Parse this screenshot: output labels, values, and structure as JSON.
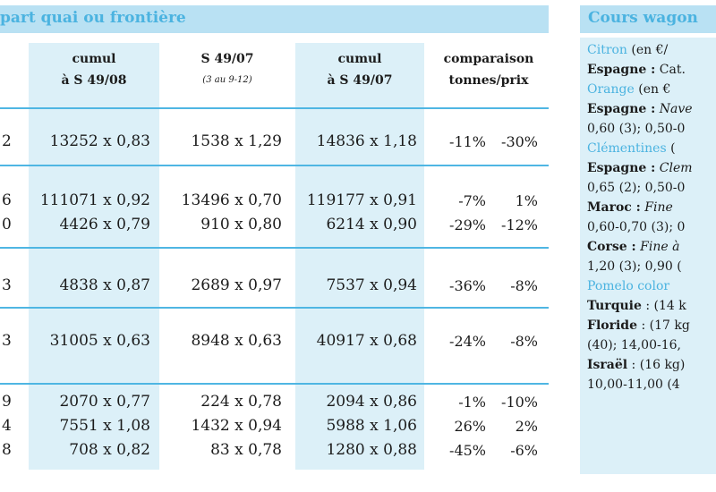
{
  "left_header": "part quai ou frontière",
  "right_header": "Cours wagon",
  "colors": {
    "accent": "#4bb3e0",
    "band": "#dcf0f8",
    "header_bg": "#b9e1f3",
    "rule": "#4fb6e3"
  },
  "columns": [
    {
      "line1": "cumul",
      "line2": "à S 49/08",
      "sub": ""
    },
    {
      "line1": "S 49/07",
      "line2": "",
      "sub": "(3 au 9-12)"
    },
    {
      "line1": "cumul",
      "line2": "à S 49/07",
      "sub": ""
    },
    {
      "line1": "comparaison",
      "line2": "tonnes/prix",
      "sub": ""
    }
  ],
  "rows": [
    {
      "edge": "2",
      "c1": "13252 x 0,83",
      "c2": "1538 x 1,29",
      "c3": "14836 x 1,18",
      "t": "-11%",
      "p": "-30%"
    },
    {
      "edge": "6",
      "c1": "111071 x 0,92",
      "c2": "13496 x 0,70",
      "c3": "119177 x 0,91",
      "t": "-7%",
      "p": "1%"
    },
    {
      "edge": "0",
      "c1": "4426 x 0,79",
      "c2": "910 x 0,80",
      "c3": "6214 x 0,90",
      "t": "-29%",
      "p": "-12%"
    },
    {
      "edge": "3",
      "c1": "4838 x 0,87",
      "c2": "2689 x 0,97",
      "c3": "7537 x 0,94",
      "t": "-36%",
      "p": "-8%"
    },
    {
      "edge": "3",
      "c1": "31005 x 0,63",
      "c2": "8948 x 0,63",
      "c3": "40917 x 0,68",
      "t": "-24%",
      "p": "-8%"
    },
    {
      "edge": "9",
      "c1": "2070 x 0,77",
      "c2": "224 x 0,78",
      "c3": "2094 x 0,86",
      "t": "-1%",
      "p": "-10%"
    },
    {
      "edge": "4",
      "c1": "7551 x 1,08",
      "c2": "1432 x 0,94",
      "c3": "5988 x 1,06",
      "t": "26%",
      "p": "2%"
    },
    {
      "edge": "8",
      "c1": "708 x 0,82",
      "c2": "83 x 0,78",
      "c3": "1280 x 0,88",
      "t": "-45%",
      "p": "-6%"
    }
  ],
  "right_lines": [
    {
      "a": "Citron",
      "b": " (en €/",
      "c": ""
    },
    {
      "a": "Espagne :",
      "b": " Cat.",
      "c": ""
    },
    {
      "a": "Orange",
      "b": " (en €",
      "c": ""
    },
    {
      "a": "Espagne :",
      "b": " Nave",
      "c": ""
    },
    {
      "a": "0,60 (3); 0,50-0",
      "b": "",
      "c": ""
    },
    {
      "a": "Clémentines",
      "b": " (",
      "c": ""
    },
    {
      "a": "Espagne :",
      "b": " Clem",
      "c": ""
    },
    {
      "a": "0,65 (2); 0,50-0",
      "b": "",
      "c": ""
    },
    {
      "a": "Maroc :",
      "b": " Fine",
      "c": ""
    },
    {
      "a": "0,60-0,70 (3); 0",
      "b": "",
      "c": ""
    },
    {
      "a": "Corse :",
      "b": " Fine",
      "c": " à"
    },
    {
      "a": "1,20 (3); 0,90 (",
      "b": "",
      "c": ""
    },
    {
      "a": "Pomelo color",
      "b": "",
      "c": ""
    },
    {
      "a": "Turquie",
      "b": " : (14 k",
      "c": ""
    },
    {
      "a": "Floride",
      "b": " : (17 kg",
      "c": ""
    },
    {
      "a": "(40); 14,00-16,",
      "b": "",
      "c": ""
    },
    {
      "a": "Israël",
      "b": " : (16 kg)",
      "c": ""
    },
    {
      "a": "10,00-11,00 (4",
      "b": "",
      "c": ""
    }
  ]
}
